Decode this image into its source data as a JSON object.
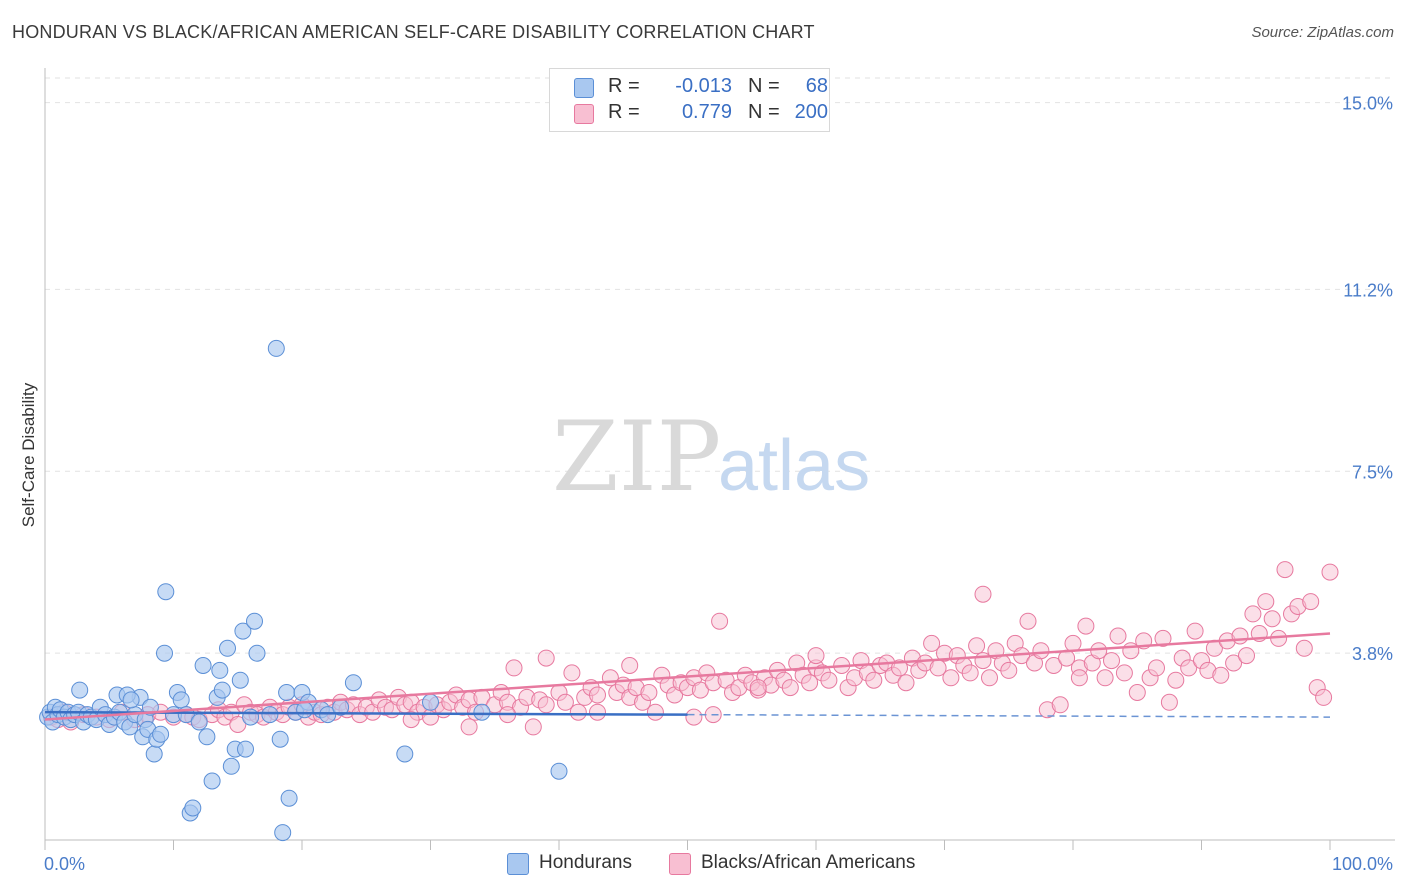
{
  "title": "HONDURAN VS BLACK/AFRICAN AMERICAN SELF-CARE DISABILITY CORRELATION CHART",
  "source": "Source: ZipAtlas.com",
  "watermark": {
    "zip": "ZIP",
    "atlas": "atlas"
  },
  "legend": {
    "rows": [
      {
        "r_label": "R =",
        "r_value": "-0.013",
        "n_label": "N =",
        "n_value": "68",
        "color": "#a9c8f0",
        "border": "#5b8fd6"
      },
      {
        "r_label": "R =",
        "r_value": "0.779",
        "n_label": "N =",
        "n_value": "200",
        "color": "#f8bfd2",
        "border": "#e7799f"
      }
    ]
  },
  "bottom_legend": [
    {
      "label": "Hondurans",
      "color": "#a9c8f0",
      "border": "#5b8fd6"
    },
    {
      "label": "Blacks/African Americans",
      "color": "#f8bfd2",
      "border": "#e7799f"
    }
  ],
  "chart_data": {
    "type": "scatter",
    "title": "HONDURAN VS BLACK/AFRICAN AMERICAN SELF-CARE DISABILITY CORRELATION CHART",
    "xlabel": "",
    "ylabel": "Self-Care Disability",
    "xlim": [
      0,
      100
    ],
    "ylim": [
      0,
      15.5
    ],
    "x_tick_labels": [
      "0.0%",
      "100.0%"
    ],
    "y_ticks": [
      3.8,
      7.5,
      11.2,
      15.0
    ],
    "y_tick_labels": [
      "3.8%",
      "7.5%",
      "11.2%",
      "15.0%"
    ],
    "series": [
      {
        "name": "Hondurans",
        "color": "#a9c8f0",
        "stroke": "#5b8fd6",
        "trend": {
          "x0": 0,
          "y0": 2.6,
          "x1": 50,
          "y1": 2.55,
          "dash_to_x": 100,
          "dash_to_y": 2.5
        },
        "points": [
          [
            0.2,
            2.5
          ],
          [
            0.4,
            2.6
          ],
          [
            0.6,
            2.4
          ],
          [
            0.8,
            2.7
          ],
          [
            1.0,
            2.55
          ],
          [
            1.2,
            2.65
          ],
          [
            1.5,
            2.5
          ],
          [
            1.8,
            2.6
          ],
          [
            2.0,
            2.45
          ],
          [
            2.3,
            2.55
          ],
          [
            2.6,
            2.6
          ],
          [
            3.0,
            2.4
          ],
          [
            3.3,
            2.55
          ],
          [
            3.6,
            2.5
          ],
          [
            4.0,
            2.45
          ],
          [
            4.3,
            2.7
          ],
          [
            4.7,
            2.55
          ],
          [
            5.0,
            2.35
          ],
          [
            5.4,
            2.5
          ],
          [
            5.8,
            2.6
          ],
          [
            6.2,
            2.4
          ],
          [
            6.6,
            2.3
          ],
          [
            7.0,
            2.55
          ],
          [
            7.4,
            2.9
          ],
          [
            7.8,
            2.45
          ],
          [
            8.2,
            2.7
          ],
          [
            2.7,
            3.05
          ],
          [
            5.6,
            2.95
          ],
          [
            6.4,
            2.95
          ],
          [
            6.7,
            2.85
          ],
          [
            7.6,
            2.1
          ],
          [
            8.0,
            2.25
          ],
          [
            8.5,
            1.75
          ],
          [
            8.7,
            2.05
          ],
          [
            9.0,
            2.15
          ],
          [
            9.4,
            5.05
          ],
          [
            9.3,
            3.8
          ],
          [
            10.0,
            2.55
          ],
          [
            10.3,
            3.0
          ],
          [
            10.6,
            2.85
          ],
          [
            11.0,
            2.55
          ],
          [
            11.3,
            0.55
          ],
          [
            11.5,
            0.65
          ],
          [
            12.0,
            2.4
          ],
          [
            12.3,
            3.55
          ],
          [
            12.6,
            2.1
          ],
          [
            13.0,
            1.2
          ],
          [
            13.4,
            2.9
          ],
          [
            13.8,
            3.05
          ],
          [
            13.6,
            3.45
          ],
          [
            14.2,
            3.9
          ],
          [
            14.5,
            1.5
          ],
          [
            14.8,
            1.85
          ],
          [
            15.2,
            3.25
          ],
          [
            15.4,
            4.25
          ],
          [
            15.6,
            1.85
          ],
          [
            16.0,
            2.5
          ],
          [
            16.3,
            4.45
          ],
          [
            16.5,
            3.8
          ],
          [
            17.5,
            2.55
          ],
          [
            18.0,
            10.0
          ],
          [
            18.3,
            2.05
          ],
          [
            18.5,
            0.15
          ],
          [
            18.8,
            3.0
          ],
          [
            19.0,
            0.85
          ],
          [
            19.5,
            2.6
          ],
          [
            20.0,
            3.0
          ],
          [
            20.5,
            2.8
          ],
          [
            20.2,
            2.65
          ],
          [
            21.5,
            2.65
          ],
          [
            22.0,
            2.55
          ],
          [
            23.0,
            2.7
          ],
          [
            24.0,
            3.2
          ],
          [
            28.0,
            1.75
          ],
          [
            30.0,
            2.8
          ],
          [
            34.0,
            2.6
          ],
          [
            40.0,
            1.4
          ]
        ]
      },
      {
        "name": "Blacks/African Americans",
        "color": "#f8bfd2",
        "stroke": "#e7799f",
        "trend": {
          "x0": 0,
          "y0": 2.45,
          "x1": 100,
          "y1": 4.2
        },
        "points": [
          [
            0.5,
            2.5
          ],
          [
            1.0,
            2.45
          ],
          [
            1.5,
            2.6
          ],
          [
            2.0,
            2.4
          ],
          [
            3.0,
            2.55
          ],
          [
            4.0,
            2.5
          ],
          [
            5.0,
            2.45
          ],
          [
            6.0,
            2.6
          ],
          [
            7.0,
            2.45
          ],
          [
            8.0,
            2.55
          ],
          [
            9.0,
            2.6
          ],
          [
            10.0,
            2.5
          ],
          [
            11.0,
            2.55
          ],
          [
            11.5,
            2.5
          ],
          [
            12.0,
            2.45
          ],
          [
            13.0,
            2.55
          ],
          [
            13.5,
            2.65
          ],
          [
            14.0,
            2.5
          ],
          [
            14.5,
            2.6
          ],
          [
            15.0,
            2.35
          ],
          [
            15.5,
            2.75
          ],
          [
            16.0,
            2.6
          ],
          [
            16.5,
            2.55
          ],
          [
            17.0,
            2.5
          ],
          [
            17.5,
            2.7
          ],
          [
            18.0,
            2.6
          ],
          [
            18.5,
            2.55
          ],
          [
            19.0,
            2.7
          ],
          [
            19.5,
            2.6
          ],
          [
            20.0,
            2.75
          ],
          [
            20.5,
            2.5
          ],
          [
            21.0,
            2.6
          ],
          [
            21.5,
            2.55
          ],
          [
            22.0,
            2.7
          ],
          [
            22.5,
            2.6
          ],
          [
            23.0,
            2.8
          ],
          [
            23.5,
            2.65
          ],
          [
            24.0,
            2.75
          ],
          [
            24.5,
            2.55
          ],
          [
            25.0,
            2.7
          ],
          [
            25.5,
            2.6
          ],
          [
            26.0,
            2.85
          ],
          [
            26.5,
            2.7
          ],
          [
            27.0,
            2.65
          ],
          [
            27.5,
            2.9
          ],
          [
            28.0,
            2.75
          ],
          [
            28.5,
            2.8
          ],
          [
            29.0,
            2.6
          ],
          [
            29.5,
            2.7
          ],
          [
            30.0,
            2.5
          ],
          [
            30.5,
            2.75
          ],
          [
            31.0,
            2.65
          ],
          [
            31.5,
            2.8
          ],
          [
            32.0,
            2.95
          ],
          [
            32.5,
            2.7
          ],
          [
            33.0,
            2.85
          ],
          [
            33.5,
            2.6
          ],
          [
            34.0,
            2.9
          ],
          [
            35.0,
            2.75
          ],
          [
            35.5,
            3.0
          ],
          [
            36.0,
            2.8
          ],
          [
            36.5,
            3.5
          ],
          [
            37.0,
            2.7
          ],
          [
            37.5,
            2.9
          ],
          [
            38.0,
            2.3
          ],
          [
            38.5,
            2.85
          ],
          [
            39.0,
            2.75
          ],
          [
            40.0,
            3.0
          ],
          [
            40.5,
            2.8
          ],
          [
            41.0,
            3.4
          ],
          [
            41.5,
            2.6
          ],
          [
            42.0,
            2.9
          ],
          [
            42.5,
            3.1
          ],
          [
            43.0,
            2.95
          ],
          [
            44.0,
            3.3
          ],
          [
            44.5,
            3.0
          ],
          [
            45.0,
            3.15
          ],
          [
            45.5,
            2.9
          ],
          [
            46.0,
            3.1
          ],
          [
            46.5,
            2.8
          ],
          [
            47.0,
            3.0
          ],
          [
            48.0,
            3.35
          ],
          [
            48.5,
            3.15
          ],
          [
            49.0,
            2.95
          ],
          [
            49.5,
            3.2
          ],
          [
            50.0,
            3.1
          ],
          [
            50.5,
            3.3
          ],
          [
            51.0,
            3.05
          ],
          [
            51.5,
            3.4
          ],
          [
            52.0,
            3.2
          ],
          [
            52.5,
            4.45
          ],
          [
            53.0,
            3.25
          ],
          [
            53.5,
            3.0
          ],
          [
            54.0,
            3.1
          ],
          [
            54.5,
            3.35
          ],
          [
            55.0,
            3.2
          ],
          [
            55.5,
            3.05
          ],
          [
            56.0,
            3.3
          ],
          [
            56.5,
            3.15
          ],
          [
            57.0,
            3.45
          ],
          [
            57.5,
            3.25
          ],
          [
            58.0,
            3.1
          ],
          [
            58.5,
            3.6
          ],
          [
            59.0,
            3.35
          ],
          [
            59.5,
            3.2
          ],
          [
            60.0,
            3.5
          ],
          [
            60.5,
            3.4
          ],
          [
            61.0,
            3.25
          ],
          [
            62.0,
            3.55
          ],
          [
            62.5,
            3.1
          ],
          [
            63.0,
            3.3
          ],
          [
            63.5,
            3.65
          ],
          [
            64.0,
            3.4
          ],
          [
            64.5,
            3.25
          ],
          [
            65.0,
            3.55
          ],
          [
            65.5,
            3.6
          ],
          [
            66.0,
            3.35
          ],
          [
            66.5,
            3.5
          ],
          [
            67.0,
            3.2
          ],
          [
            67.5,
            3.7
          ],
          [
            68.0,
            3.45
          ],
          [
            68.5,
            3.6
          ],
          [
            69.0,
            4.0
          ],
          [
            69.5,
            3.5
          ],
          [
            70.0,
            3.8
          ],
          [
            70.5,
            3.3
          ],
          [
            71.0,
            3.75
          ],
          [
            71.5,
            3.55
          ],
          [
            72.0,
            3.4
          ],
          [
            72.5,
            3.95
          ],
          [
            73.0,
            3.65
          ],
          [
            73.5,
            3.3
          ],
          [
            74.0,
            3.85
          ],
          [
            74.5,
            3.6
          ],
          [
            75.0,
            3.45
          ],
          [
            75.5,
            4.0
          ],
          [
            76.0,
            3.75
          ],
          [
            76.5,
            4.45
          ],
          [
            77.0,
            3.6
          ],
          [
            77.5,
            3.85
          ],
          [
            78.0,
            2.65
          ],
          [
            78.5,
            3.55
          ],
          [
            79.0,
            2.75
          ],
          [
            79.5,
            3.7
          ],
          [
            80.0,
            4.0
          ],
          [
            80.5,
            3.5
          ],
          [
            81.0,
            4.35
          ],
          [
            81.5,
            3.6
          ],
          [
            82.0,
            3.85
          ],
          [
            82.5,
            3.3
          ],
          [
            83.0,
            3.65
          ],
          [
            83.5,
            4.15
          ],
          [
            84.0,
            3.4
          ],
          [
            84.5,
            3.85
          ],
          [
            85.0,
            3.0
          ],
          [
            85.5,
            4.05
          ],
          [
            86.0,
            3.3
          ],
          [
            86.5,
            3.5
          ],
          [
            87.0,
            4.1
          ],
          [
            87.5,
            2.8
          ],
          [
            88.0,
            3.25
          ],
          [
            88.5,
            3.7
          ],
          [
            89.0,
            3.5
          ],
          [
            89.5,
            4.25
          ],
          [
            90.0,
            3.65
          ],
          [
            90.5,
            3.45
          ],
          [
            91.0,
            3.9
          ],
          [
            91.5,
            3.35
          ],
          [
            92.0,
            4.05
          ],
          [
            92.5,
            3.6
          ],
          [
            93.0,
            4.15
          ],
          [
            93.5,
            3.75
          ],
          [
            94.0,
            4.6
          ],
          [
            94.5,
            4.2
          ],
          [
            95.0,
            4.85
          ],
          [
            95.5,
            4.5
          ],
          [
            96.0,
            4.1
          ],
          [
            96.5,
            5.5
          ],
          [
            97.0,
            4.6
          ],
          [
            97.5,
            4.75
          ],
          [
            98.0,
            3.9
          ],
          [
            98.5,
            4.85
          ],
          [
            99.0,
            3.1
          ],
          [
            99.5,
            2.9
          ],
          [
            100.0,
            5.45
          ],
          [
            55.5,
            3.1
          ],
          [
            60.0,
            3.75
          ],
          [
            73.0,
            5.0
          ],
          [
            80.5,
            3.3
          ],
          [
            39.0,
            3.7
          ],
          [
            45.5,
            3.55
          ],
          [
            50.5,
            2.5
          ],
          [
            33.0,
            2.3
          ],
          [
            28.5,
            2.45
          ],
          [
            52.0,
            2.55
          ],
          [
            47.5,
            2.6
          ],
          [
            43.0,
            2.6
          ],
          [
            36.0,
            2.55
          ]
        ]
      }
    ]
  }
}
